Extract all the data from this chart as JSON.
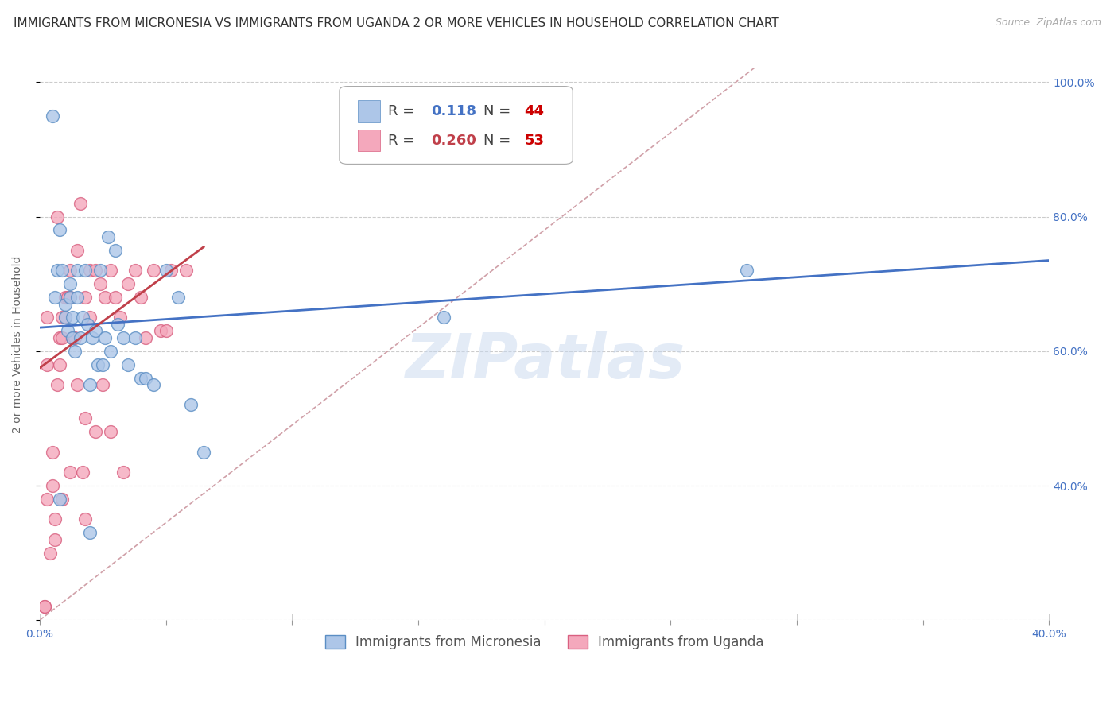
{
  "title": "IMMIGRANTS FROM MICRONESIA VS IMMIGRANTS FROM UGANDA 2 OR MORE VEHICLES IN HOUSEHOLD CORRELATION CHART",
  "source": "Source: ZipAtlas.com",
  "ylabel": "2 or more Vehicles in Household",
  "xlim": [
    0.0,
    0.4
  ],
  "ylim": [
    0.2,
    1.02
  ],
  "R_micronesia": 0.118,
  "N_micronesia": 44,
  "R_uganda": 0.26,
  "N_uganda": 53,
  "micronesia_color": "#adc6e8",
  "uganda_color": "#f4a8bc",
  "micronesia_edge": "#5b8ec4",
  "uganda_edge": "#d96080",
  "trend_micronesia_color": "#4472c4",
  "trend_uganda_color": "#c0404a",
  "diag_color": "#d0a0a8",
  "watermark": "ZIPatlas",
  "background_color": "#ffffff",
  "grid_color": "#cccccc",
  "title_fontsize": 11,
  "axis_label_fontsize": 10,
  "tick_fontsize": 10,
  "source_fontsize": 9,
  "micronesia_x": [
    0.005,
    0.006,
    0.007,
    0.008,
    0.009,
    0.01,
    0.01,
    0.011,
    0.012,
    0.012,
    0.013,
    0.013,
    0.014,
    0.015,
    0.015,
    0.016,
    0.017,
    0.018,
    0.019,
    0.02,
    0.021,
    0.022,
    0.023,
    0.024,
    0.025,
    0.026,
    0.027,
    0.028,
    0.03,
    0.031,
    0.033,
    0.035,
    0.038,
    0.04,
    0.042,
    0.045,
    0.05,
    0.055,
    0.06,
    0.065,
    0.16,
    0.28,
    0.008,
    0.02
  ],
  "micronesia_y": [
    0.95,
    0.68,
    0.72,
    0.78,
    0.72,
    0.67,
    0.65,
    0.63,
    0.7,
    0.68,
    0.62,
    0.65,
    0.6,
    0.68,
    0.72,
    0.62,
    0.65,
    0.72,
    0.64,
    0.55,
    0.62,
    0.63,
    0.58,
    0.72,
    0.58,
    0.62,
    0.77,
    0.6,
    0.75,
    0.64,
    0.62,
    0.58,
    0.62,
    0.56,
    0.56,
    0.55,
    0.72,
    0.68,
    0.52,
    0.45,
    0.65,
    0.72,
    0.38,
    0.33
  ],
  "uganda_x": [
    0.002,
    0.003,
    0.003,
    0.004,
    0.005,
    0.005,
    0.006,
    0.007,
    0.007,
    0.008,
    0.008,
    0.009,
    0.009,
    0.01,
    0.01,
    0.011,
    0.012,
    0.012,
    0.013,
    0.014,
    0.015,
    0.015,
    0.016,
    0.017,
    0.018,
    0.018,
    0.02,
    0.02,
    0.022,
    0.022,
    0.024,
    0.025,
    0.026,
    0.028,
    0.028,
    0.03,
    0.032,
    0.033,
    0.035,
    0.038,
    0.04,
    0.042,
    0.045,
    0.048,
    0.05,
    0.052,
    0.058,
    0.003,
    0.006,
    0.009,
    0.012,
    0.018,
    0.002
  ],
  "uganda_y": [
    0.22,
    0.65,
    0.58,
    0.3,
    0.4,
    0.45,
    0.32,
    0.8,
    0.55,
    0.58,
    0.62,
    0.62,
    0.65,
    0.65,
    0.68,
    0.68,
    0.72,
    0.68,
    0.62,
    0.62,
    0.75,
    0.55,
    0.82,
    0.42,
    0.68,
    0.5,
    0.65,
    0.72,
    0.72,
    0.48,
    0.7,
    0.55,
    0.68,
    0.72,
    0.48,
    0.68,
    0.65,
    0.42,
    0.7,
    0.72,
    0.68,
    0.62,
    0.72,
    0.63,
    0.63,
    0.72,
    0.72,
    0.38,
    0.35,
    0.38,
    0.42,
    0.35,
    0.22
  ],
  "mic_trend_x0": 0.0,
  "mic_trend_y0": 0.635,
  "mic_trend_x1": 0.4,
  "mic_trend_y1": 0.735,
  "uga_trend_x0": 0.0,
  "uga_trend_y0": 0.575,
  "uga_trend_x1": 0.065,
  "uga_trend_y1": 0.755
}
